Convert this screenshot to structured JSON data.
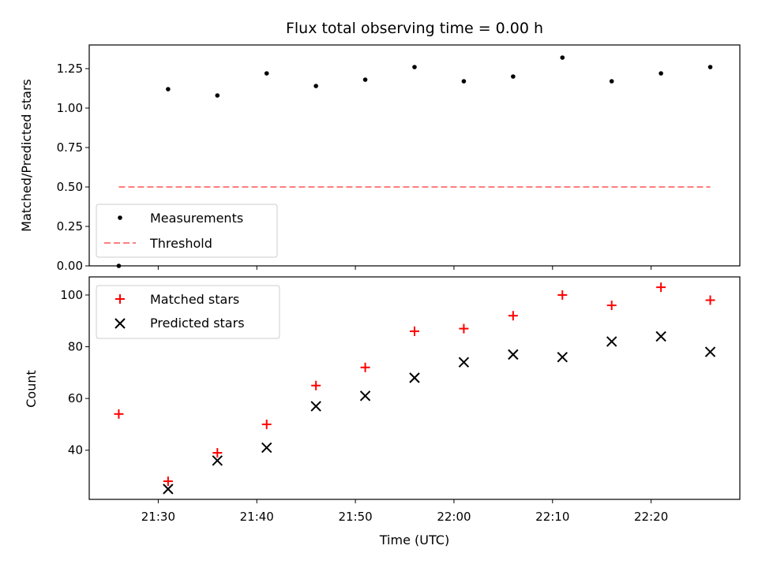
{
  "chart_data": [
    {
      "type": "scatter",
      "title": "Flux total observing time = 0.00 h",
      "xlabel": "",
      "ylabel": "Matched/Predicted stars",
      "ylim": [
        0,
        1.4
      ],
      "yticks": [
        0.0,
        0.25,
        0.5,
        0.75,
        1.0,
        1.25
      ],
      "ytick_labels": [
        "0.00",
        "0.25",
        "0.50",
        "0.75",
        "1.00",
        "1.25"
      ],
      "x_time_range": [
        "21:23",
        "22:29"
      ],
      "xticks": [
        "21:30",
        "21:40",
        "21:50",
        "22:00",
        "22:10",
        "22:20"
      ],
      "xtick_labels_shown": false,
      "legend": {
        "placement": "lower-left",
        "entries": [
          "Measurements",
          "Threshold"
        ]
      },
      "series": [
        {
          "name": "Measurements",
          "marker": "dot",
          "color": "#000000",
          "x": [
            "21:26",
            "21:31",
            "21:36",
            "21:41",
            "21:46",
            "21:51",
            "21:56",
            "22:01",
            "22:06",
            "22:11",
            "22:16",
            "22:21",
            "22:26"
          ],
          "y": [
            0.0,
            1.12,
            1.08,
            1.22,
            1.14,
            1.18,
            1.26,
            1.17,
            1.2,
            1.32,
            1.17,
            1.22,
            1.26
          ]
        },
        {
          "name": "Threshold",
          "style": "dashed-line",
          "color": "#ff7f7f",
          "x": [
            "21:26",
            "22:26"
          ],
          "y": [
            0.5,
            0.5
          ]
        }
      ]
    },
    {
      "type": "scatter",
      "title": "",
      "xlabel": "Time (UTC)",
      "ylabel": "Count",
      "ylim": [
        21,
        107
      ],
      "yticks": [
        40,
        60,
        80,
        100
      ],
      "ytick_labels": [
        "40",
        "60",
        "80",
        "100"
      ],
      "x_time_range": [
        "21:23",
        "22:29"
      ],
      "xticks": [
        "21:30",
        "21:40",
        "21:50",
        "22:00",
        "22:10",
        "22:20"
      ],
      "xtick_labels_shown": true,
      "legend": {
        "placement": "upper-left",
        "entries": [
          "Matched stars",
          "Predicted stars"
        ]
      },
      "series": [
        {
          "name": "Matched stars",
          "marker": "plus",
          "color": "#ff0000",
          "x": [
            "21:26",
            "21:31",
            "21:36",
            "21:41",
            "21:46",
            "21:51",
            "21:56",
            "22:01",
            "22:06",
            "22:11",
            "22:16",
            "22:21",
            "22:26"
          ],
          "y": [
            54,
            28,
            39,
            50,
            65,
            72,
            86,
            87,
            92,
            100,
            96,
            103,
            98
          ]
        },
        {
          "name": "Predicted stars",
          "marker": "x",
          "color": "#000000",
          "x": [
            "21:31",
            "21:36",
            "21:41",
            "21:46",
            "21:51",
            "21:56",
            "22:01",
            "22:06",
            "22:11",
            "22:16",
            "22:21",
            "22:26"
          ],
          "y": [
            25,
            36,
            41,
            57,
            61,
            68,
            74,
            77,
            76,
            82,
            84,
            78
          ]
        }
      ]
    }
  ]
}
